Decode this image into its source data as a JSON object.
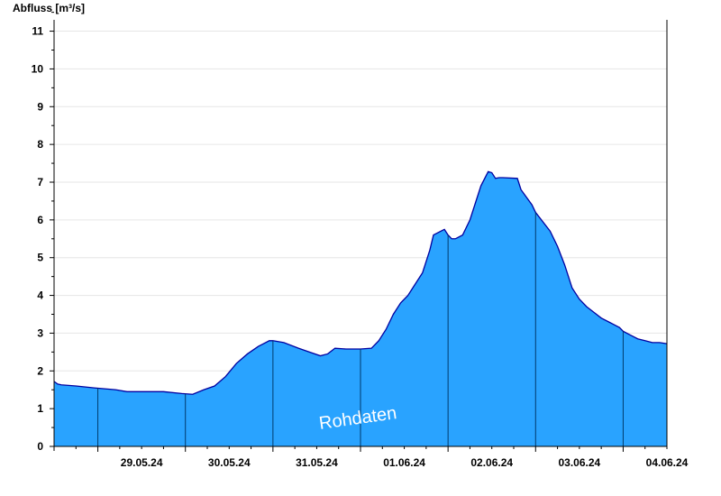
{
  "chart_data": {
    "type": "area",
    "ylabel": "Abfluss [m³/s]",
    "watermark": "Rohdaten",
    "ylim": [
      0,
      11.3
    ],
    "xlim": [
      "2024-05-28T12:00",
      "2024-06-04T12:00"
    ],
    "y_ticks": [
      0,
      1,
      2,
      3,
      4,
      5,
      6,
      7,
      8,
      9,
      10,
      11
    ],
    "x_tick_labels": [
      "29.05.24",
      "30.05.24",
      "31.05.24",
      "01.06.24",
      "02.06.24",
      "03.06.24",
      "04.06.24"
    ],
    "grid": true,
    "colors": {
      "fill": "#29a3ff",
      "line": "#0000a0",
      "grid": "#e6e6e6",
      "day_line": "#003a6b"
    },
    "series": [
      {
        "x": [
          "2024-05-28T12:00",
          "2024-05-28T13:00",
          "2024-05-28T14:00",
          "2024-05-28T18:00",
          "2024-05-28T23:00",
          "2024-05-29T05:00",
          "2024-05-29T08:00",
          "2024-05-29T12:00",
          "2024-05-29T18:00",
          "2024-05-29T23:00",
          "2024-05-30T02:00",
          "2024-05-30T05:00",
          "2024-05-30T08:00",
          "2024-05-30T11:00",
          "2024-05-30T14:00",
          "2024-05-30T17:00",
          "2024-05-30T20:00",
          "2024-05-30T23:00",
          "2024-05-31T00:00",
          "2024-05-31T03:00",
          "2024-05-31T07:00",
          "2024-05-31T10:00",
          "2024-05-31T13:00",
          "2024-05-31T15:00",
          "2024-05-31T17:00",
          "2024-05-31T20:00",
          "2024-05-31T23:00",
          "2024-06-01T00:00",
          "2024-06-01T03:00",
          "2024-06-01T05:00",
          "2024-06-01T07:00",
          "2024-06-01T09:00",
          "2024-06-01T11:00",
          "2024-06-01T13:00",
          "2024-06-01T15:00",
          "2024-06-01T17:00",
          "2024-06-01T19:00",
          "2024-06-01T20:00",
          "2024-06-01T23:00",
          "2024-06-02T00:00",
          "2024-06-02T01:00",
          "2024-06-02T02:00",
          "2024-06-02T04:00",
          "2024-06-02T06:00",
          "2024-06-02T09:00",
          "2024-06-02T11:00",
          "2024-06-02T12:00",
          "2024-06-02T13:00",
          "2024-06-02T14:00",
          "2024-06-02T15:00",
          "2024-06-02T19:00",
          "2024-06-02T20:00",
          "2024-06-02T23:00",
          "2024-06-03T00:00",
          "2024-06-03T04:00",
          "2024-06-03T06:00",
          "2024-06-03T08:00",
          "2024-06-03T10:00",
          "2024-06-03T12:00",
          "2024-06-03T14:00",
          "2024-06-03T16:00",
          "2024-06-03T18:00",
          "2024-06-03T20:00",
          "2024-06-03T21:00",
          "2024-06-03T23:00",
          "2024-06-04T00:00",
          "2024-06-04T02:00",
          "2024-06-04T04:00",
          "2024-06-04T06:00",
          "2024-06-04T08:00",
          "2024-06-04T10:00",
          "2024-06-04T12:00"
        ],
        "values": [
          1.72,
          1.65,
          1.63,
          1.6,
          1.55,
          1.5,
          1.45,
          1.45,
          1.45,
          1.4,
          1.38,
          1.5,
          1.6,
          1.85,
          2.2,
          2.45,
          2.65,
          2.8,
          2.8,
          2.75,
          2.6,
          2.5,
          2.4,
          2.45,
          2.6,
          2.58,
          2.58,
          2.58,
          2.6,
          2.8,
          3.1,
          3.5,
          3.8,
          4.0,
          4.3,
          4.6,
          5.2,
          5.6,
          5.75,
          5.6,
          5.5,
          5.5,
          5.6,
          6.0,
          6.9,
          7.28,
          7.25,
          7.1,
          7.12,
          7.12,
          7.1,
          6.8,
          6.4,
          6.2,
          5.7,
          5.3,
          4.8,
          4.2,
          3.9,
          3.7,
          3.55,
          3.4,
          3.3,
          3.25,
          3.15,
          3.05,
          2.95,
          2.85,
          2.8,
          2.75,
          2.75,
          2.72
        ]
      }
    ]
  }
}
